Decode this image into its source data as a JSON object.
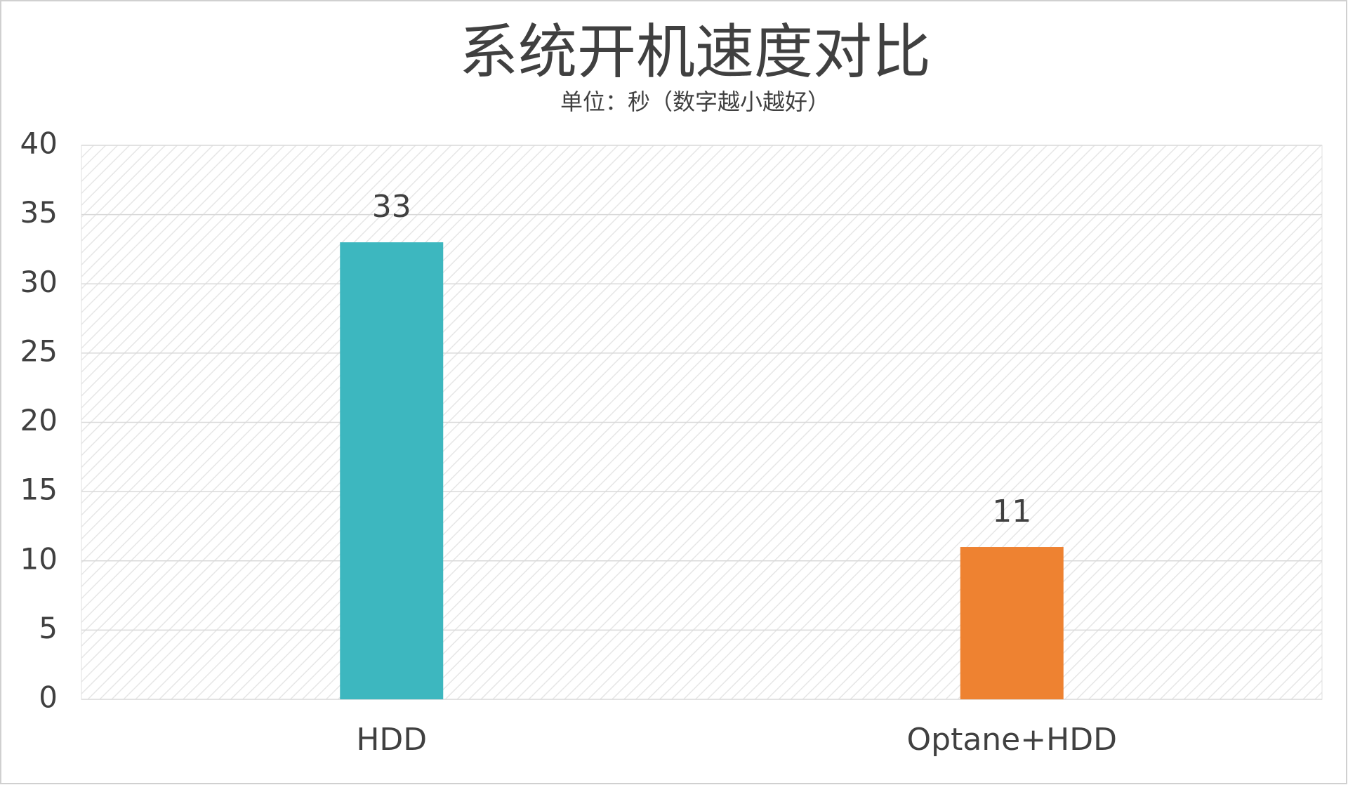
{
  "chart_data": {
    "type": "bar",
    "title": "系统开机速度对比",
    "subtitle": "单位：秒（数字越小越好）",
    "categories": [
      "HDD",
      "Optane+HDD"
    ],
    "values": [
      33,
      11
    ],
    "colors": [
      "#3db7bf",
      "#ee8231"
    ],
    "ylim": [
      0,
      40
    ],
    "yticks": [
      0,
      5,
      10,
      15,
      20,
      25,
      30,
      35,
      40
    ],
    "grid": true
  }
}
